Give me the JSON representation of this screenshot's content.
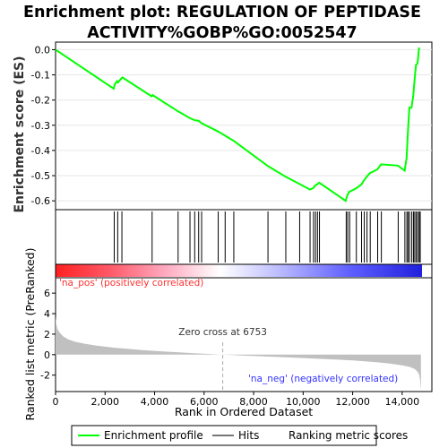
{
  "chart_data": {
    "type": "line",
    "title_lines": [
      "Enrichment plot: REGULATION OF PEPTIDASE",
      "ACTIVITY%GOBP%GO:0052547"
    ],
    "top_panel": {
      "ylabel": "Enrichment score (ES)",
      "ylim": [
        -0.635,
        0.03
      ],
      "yticks": [
        0.0,
        -0.1,
        -0.2,
        -0.3,
        -0.4,
        -0.5,
        -0.6
      ],
      "ytick_labels": [
        "0.0",
        "-0.1",
        "-0.2",
        "-0.3",
        "-0.4",
        "-0.5",
        "-0.6"
      ],
      "grid": true,
      "series": [
        {
          "name": "Enrichment profile",
          "color": "#00ff00",
          "x": [
            0,
            2350,
            2380,
            2480,
            2520,
            2650,
            2700,
            3880,
            3920,
            4950,
            5430,
            5620,
            5780,
            5900,
            6570,
            7200,
            8580,
            9300,
            9850,
            10270,
            10400,
            10480,
            10560,
            10650,
            11720,
            11760,
            11850,
            12150,
            12350,
            12450,
            12560,
            12700,
            13000,
            13150,
            13830,
            14100,
            14180,
            14230,
            14290,
            14380,
            14450,
            14500,
            14560,
            14620,
            14680,
            14720
          ],
          "y": [
            0.0,
            -0.155,
            -0.14,
            -0.125,
            -0.13,
            -0.115,
            -0.11,
            -0.185,
            -0.18,
            -0.245,
            -0.272,
            -0.28,
            -0.282,
            -0.292,
            -0.325,
            -0.362,
            -0.462,
            -0.505,
            -0.533,
            -0.555,
            -0.55,
            -0.54,
            -0.535,
            -0.528,
            -0.6,
            -0.585,
            -0.565,
            -0.55,
            -0.535,
            -0.52,
            -0.505,
            -0.49,
            -0.475,
            -0.455,
            -0.46,
            -0.48,
            -0.43,
            -0.33,
            -0.23,
            -0.23,
            -0.18,
            -0.12,
            -0.06,
            -0.055,
            0.005,
            0.005
          ]
        }
      ]
    },
    "hits": {
      "name": "Hits",
      "x": [
        2370,
        2510,
        2680,
        3900,
        4950,
        5430,
        5620,
        5780,
        5900,
        6570,
        6850,
        7200,
        8580,
        9300,
        9860,
        10280,
        10420,
        10500,
        10580,
        10660,
        11740,
        11800,
        11880,
        12150,
        12360,
        12470,
        12580,
        12710,
        13010,
        13160,
        13840,
        14110,
        14190,
        14240,
        14300,
        14390,
        14460,
        14510,
        14570,
        14630,
        14690,
        14730
      ]
    },
    "ranked_metric": {
      "name": "Ranking metric scores",
      "ylabel": "Ranked list metric (PreRanked)",
      "ylim": [
        -3.6,
        7.5
      ],
      "yticks": [
        6,
        4,
        2,
        0,
        -2
      ],
      "ytick_labels": [
        "6",
        "4",
        "2",
        "0",
        "-2"
      ],
      "zero_cross": 6753,
      "zero_cross_label": "Zero cross at 6753",
      "pos_label": "'na_pos' (positively correlated)",
      "neg_label": "'na_neg' (negatively correlated)",
      "profile_x": [
        0,
        30,
        80,
        150,
        300,
        500,
        800,
        1200,
        1600,
        2000,
        2500,
        3000,
        3500,
        4000,
        4500,
        5000,
        5500,
        6000,
        6500,
        6753,
        7500,
        8500,
        9500,
        10500,
        11500,
        12000,
        12500,
        13000,
        13500,
        14000,
        14300,
        14500,
        14600,
        14680,
        14720,
        14760
      ],
      "profile_y": [
        3.7,
        3.0,
        2.5,
        2.2,
        1.8,
        1.5,
        1.25,
        1.05,
        0.9,
        0.78,
        0.65,
        0.55,
        0.45,
        0.37,
        0.29,
        0.22,
        0.15,
        0.09,
        0.03,
        0.0,
        -0.08,
        -0.18,
        -0.28,
        -0.38,
        -0.5,
        -0.57,
        -0.65,
        -0.75,
        -0.87,
        -1.05,
        -1.2,
        -1.4,
        -1.6,
        -1.9,
        -2.4,
        -3.4
      ]
    },
    "xaxis": {
      "label": "Rank in Ordered Dataset",
      "xlim": [
        0,
        15200
      ],
      "xticks": [
        0,
        2000,
        4000,
        6000,
        8000,
        10000,
        12000,
        14000
      ],
      "xtick_labels": [
        "0",
        "2,000",
        "4,000",
        "6,000",
        "8,000",
        "10,000",
        "12,000",
        "14,000"
      ],
      "n_genes": 14770
    },
    "colors": {
      "profile": "#00ff00",
      "hits": "#000000",
      "metric_fill": "#c0c0c0",
      "pos_text": "#ff3030",
      "neg_text": "#3333ff",
      "zero_line": "#aaaaaa",
      "heat_pos": "#ff0000",
      "heat_mid": "#ffffff",
      "heat_neg": "#0000ff"
    },
    "legend": {
      "placement": "bottom",
      "items": [
        {
          "label": "Enrichment profile",
          "color": "#00ff00"
        },
        {
          "label": "Hits",
          "color": "#777777"
        },
        {
          "label": "Ranking metric scores",
          "color": "#cccccc"
        }
      ]
    }
  }
}
